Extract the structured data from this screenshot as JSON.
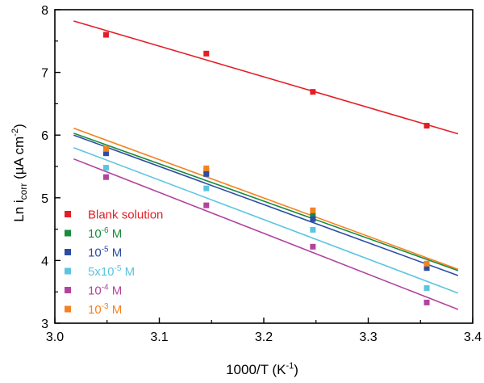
{
  "chart_data": {
    "type": "scatter",
    "xlabel": {
      "main": "1000/T  (K",
      "sup": "-1",
      "tail": ")"
    },
    "ylabel": {
      "part1": "Ln i",
      "sub": "corr",
      "part2": " (µA cm",
      "sup": "-2",
      "tail": ")"
    },
    "xlim": [
      3.0,
      3.4
    ],
    "ylim": [
      3,
      8
    ],
    "x_ticks": [
      "3.0",
      "3.1",
      "3.2",
      "3.3",
      "3.4"
    ],
    "y_ticks": [
      "3",
      "4",
      "5",
      "6",
      "7",
      "8"
    ],
    "grid": false,
    "legend_position": "left",
    "x": [
      3.049,
      3.145,
      3.247,
      3.356
    ],
    "fit_x_range": [
      3.018,
      3.386
    ],
    "series": [
      {
        "label": {
          "text": "Blank solution"
        },
        "color": "#e41e26",
        "values": [
          7.6,
          7.3,
          6.69,
          6.15
        ],
        "fit": [
          7.82,
          6.02
        ]
      },
      {
        "label": {
          "pre": "10",
          "sup": "-6",
          "post": " M"
        },
        "color": "#1a8a3c",
        "values": [
          5.77,
          5.43,
          4.72,
          3.92
        ],
        "fit": [
          6.03,
          3.84
        ]
      },
      {
        "label": {
          "pre": "10",
          "sup": "-5",
          "post": " M"
        },
        "color": "#2b4ea2",
        "values": [
          5.71,
          5.38,
          4.66,
          3.88
        ],
        "fit": [
          6.0,
          3.76
        ]
      },
      {
        "label": {
          "pre": "5x10",
          "sup": "-5",
          "post": " M"
        },
        "color": "#5bc5e0",
        "values": [
          5.48,
          5.15,
          4.49,
          3.56
        ],
        "fit": [
          5.8,
          3.48
        ]
      },
      {
        "label": {
          "pre": "10",
          "sup": "-4",
          "post": " M"
        },
        "color": "#b2449e",
        "values": [
          5.33,
          4.88,
          4.22,
          3.33
        ],
        "fit": [
          5.62,
          3.22
        ]
      },
      {
        "label": {
          "pre": "10",
          "sup": "-3",
          "post": " M"
        },
        "color": "#f58220",
        "values": [
          5.78,
          5.47,
          4.8,
          3.95
        ],
        "fit": [
          6.11,
          3.86
        ]
      }
    ]
  }
}
